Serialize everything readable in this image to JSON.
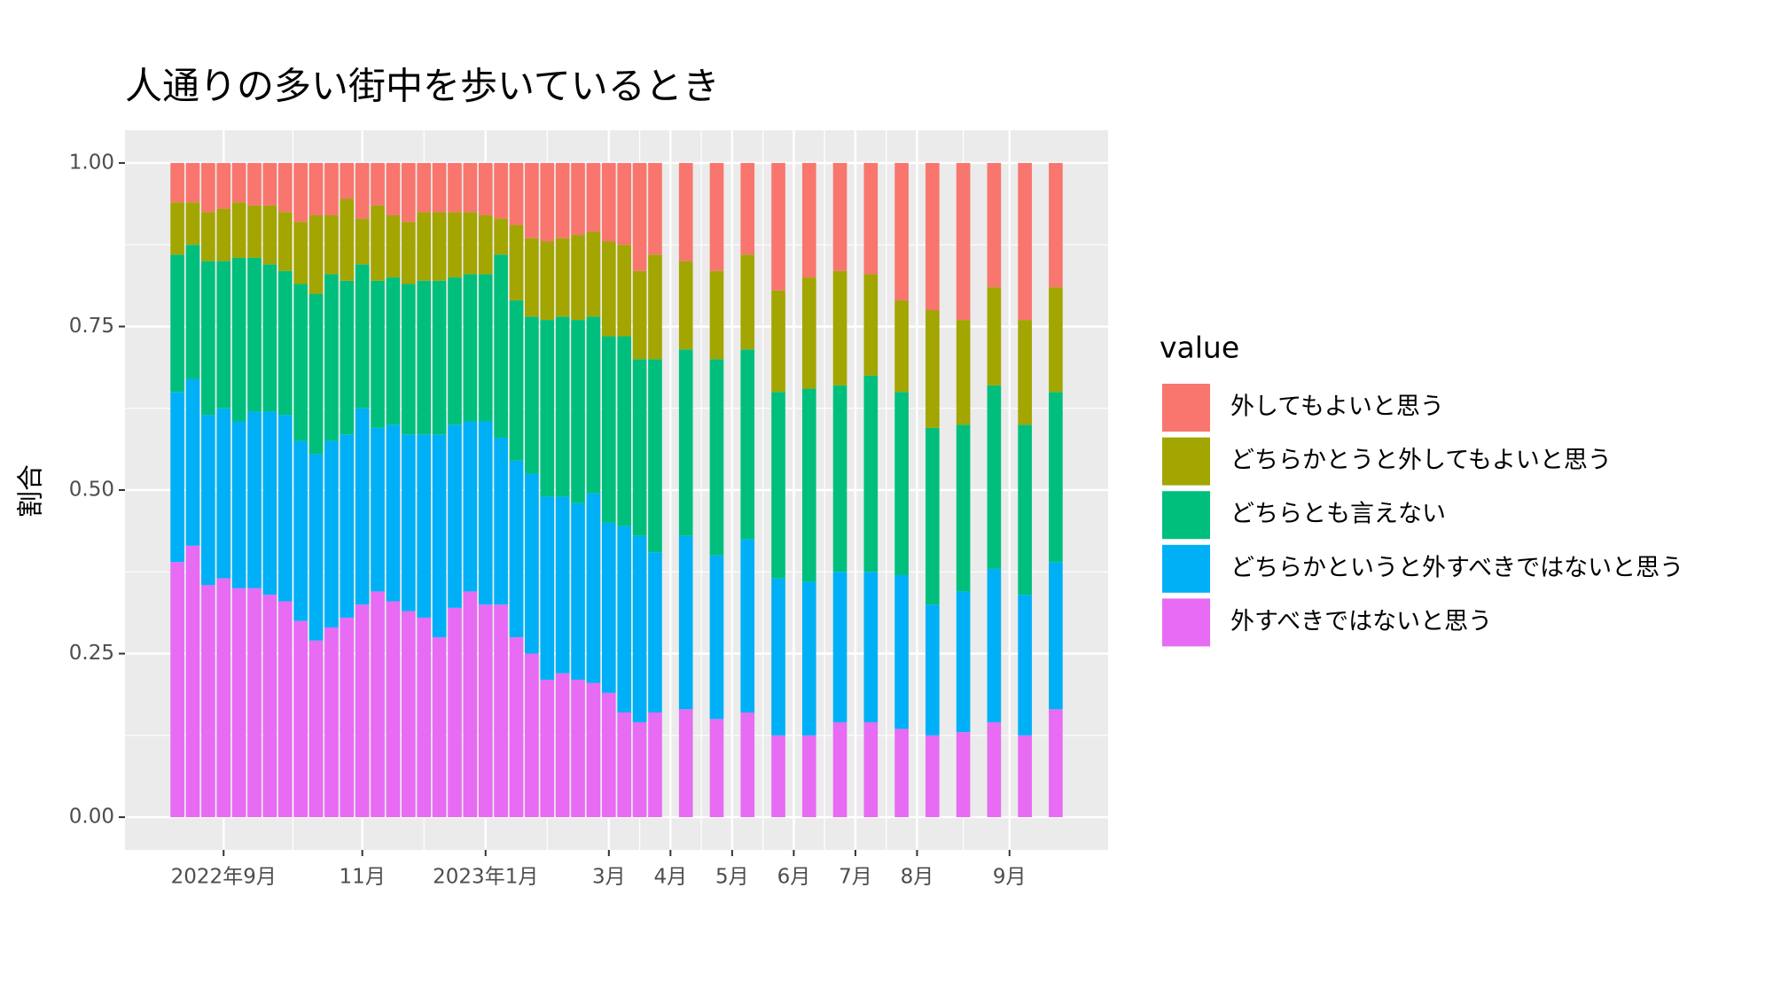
{
  "chart_data": {
    "type": "stacked_bar",
    "title": "人通りの多い街中を歩いているとき",
    "y_label": "割合",
    "legend_title": "value",
    "x": [
      0,
      1,
      2,
      3,
      4,
      5,
      6,
      7,
      8,
      9,
      10,
      11,
      12,
      13,
      14,
      15,
      16,
      17,
      18,
      19,
      20,
      21,
      22,
      23,
      24,
      25,
      26,
      27,
      28,
      29,
      30,
      31,
      33,
      35,
      37,
      39,
      41,
      43,
      45,
      47,
      49,
      51,
      53,
      55,
      57
    ],
    "xlim": [
      -3.4,
      60.4
    ],
    "xticks": [
      {
        "value": 3,
        "label": "2022年9月"
      },
      {
        "value": 12,
        "label": "11月"
      },
      {
        "value": 20,
        "label": "2023年1月"
      },
      {
        "value": 28,
        "label": "3月"
      },
      {
        "value": 32,
        "label": "4月"
      },
      {
        "value": 36,
        "label": "5月"
      },
      {
        "value": 40,
        "label": "6月"
      },
      {
        "value": 44,
        "label": "7月"
      },
      {
        "value": 48,
        "label": "8月"
      },
      {
        "value": 54,
        "label": "9月"
      }
    ],
    "ylim": [
      -0.05,
      1.05
    ],
    "yticks": [
      {
        "value": 0,
        "label": "0.00"
      },
      {
        "value": 0.25,
        "label": "0.25"
      },
      {
        "value": 0.5,
        "label": "0.50"
      },
      {
        "value": 0.75,
        "label": "0.75"
      },
      {
        "value": 1,
        "label": "1.00"
      }
    ],
    "grid": true,
    "legend_position": "right",
    "series": [
      {
        "name": "外してもよいと思う",
        "color": "#F8766D",
        "values": [
          0.06,
          0.06,
          0.075,
          0.07,
          0.06,
          0.065,
          0.065,
          0.075,
          0.09,
          0.08,
          0.08,
          0.055,
          0.085,
          0.065,
          0.08,
          0.09,
          0.075,
          0.075,
          0.075,
          0.075,
          0.08,
          0.085,
          0.095,
          0.115,
          0.12,
          0.115,
          0.11,
          0.105,
          0.12,
          0.125,
          0.165,
          0.14,
          0.15,
          0.165,
          0.14,
          0.195,
          0.175,
          0.165,
          0.17,
          0.21,
          0.225,
          0.24,
          0.19,
          0.24,
          0.19
        ]
      },
      {
        "name": "どちらかとうと外してもよいと思う",
        "color": "#A3A500",
        "values": [
          0.08,
          0.065,
          0.075,
          0.08,
          0.085,
          0.08,
          0.09,
          0.09,
          0.095,
          0.12,
          0.09,
          0.125,
          0.07,
          0.115,
          0.095,
          0.095,
          0.105,
          0.105,
          0.1,
          0.095,
          0.09,
          0.055,
          0.115,
          0.12,
          0.12,
          0.12,
          0.13,
          0.13,
          0.145,
          0.14,
          0.135,
          0.16,
          0.135,
          0.135,
          0.145,
          0.155,
          0.17,
          0.175,
          0.155,
          0.14,
          0.18,
          0.16,
          0.15,
          0.16,
          0.16
        ]
      },
      {
        "name": "どちらとも言えない",
        "color": "#00BF7D",
        "values": [
          0.21,
          0.205,
          0.235,
          0.225,
          0.25,
          0.235,
          0.225,
          0.22,
          0.24,
          0.245,
          0.255,
          0.235,
          0.22,
          0.225,
          0.225,
          0.23,
          0.235,
          0.235,
          0.225,
          0.225,
          0.225,
          0.28,
          0.245,
          0.24,
          0.27,
          0.275,
          0.28,
          0.27,
          0.285,
          0.29,
          0.27,
          0.295,
          0.285,
          0.3,
          0.29,
          0.285,
          0.295,
          0.285,
          0.3,
          0.28,
          0.27,
          0.255,
          0.28,
          0.26,
          0.26
        ]
      },
      {
        "name": "どちらかというと外すべきではないと思う",
        "color": "#00B0F6",
        "values": [
          0.26,
          0.255,
          0.26,
          0.26,
          0.255,
          0.27,
          0.28,
          0.285,
          0.275,
          0.285,
          0.285,
          0.28,
          0.3,
          0.25,
          0.27,
          0.27,
          0.28,
          0.31,
          0.28,
          0.26,
          0.28,
          0.255,
          0.27,
          0.275,
          0.28,
          0.27,
          0.27,
          0.29,
          0.26,
          0.285,
          0.285,
          0.245,
          0.265,
          0.25,
          0.265,
          0.24,
          0.235,
          0.23,
          0.23,
          0.235,
          0.2,
          0.215,
          0.235,
          0.215,
          0.225
        ]
      },
      {
        "name": "外すべきではないと思う",
        "color": "#E76BF3",
        "values": [
          0.39,
          0.415,
          0.355,
          0.365,
          0.35,
          0.35,
          0.34,
          0.33,
          0.3,
          0.27,
          0.29,
          0.305,
          0.325,
          0.345,
          0.33,
          0.315,
          0.305,
          0.275,
          0.32,
          0.345,
          0.325,
          0.325,
          0.275,
          0.25,
          0.21,
          0.22,
          0.21,
          0.205,
          0.19,
          0.16,
          0.145,
          0.16,
          0.165,
          0.15,
          0.16,
          0.125,
          0.125,
          0.145,
          0.145,
          0.135,
          0.125,
          0.13,
          0.145,
          0.125,
          0.165
        ]
      }
    ]
  }
}
